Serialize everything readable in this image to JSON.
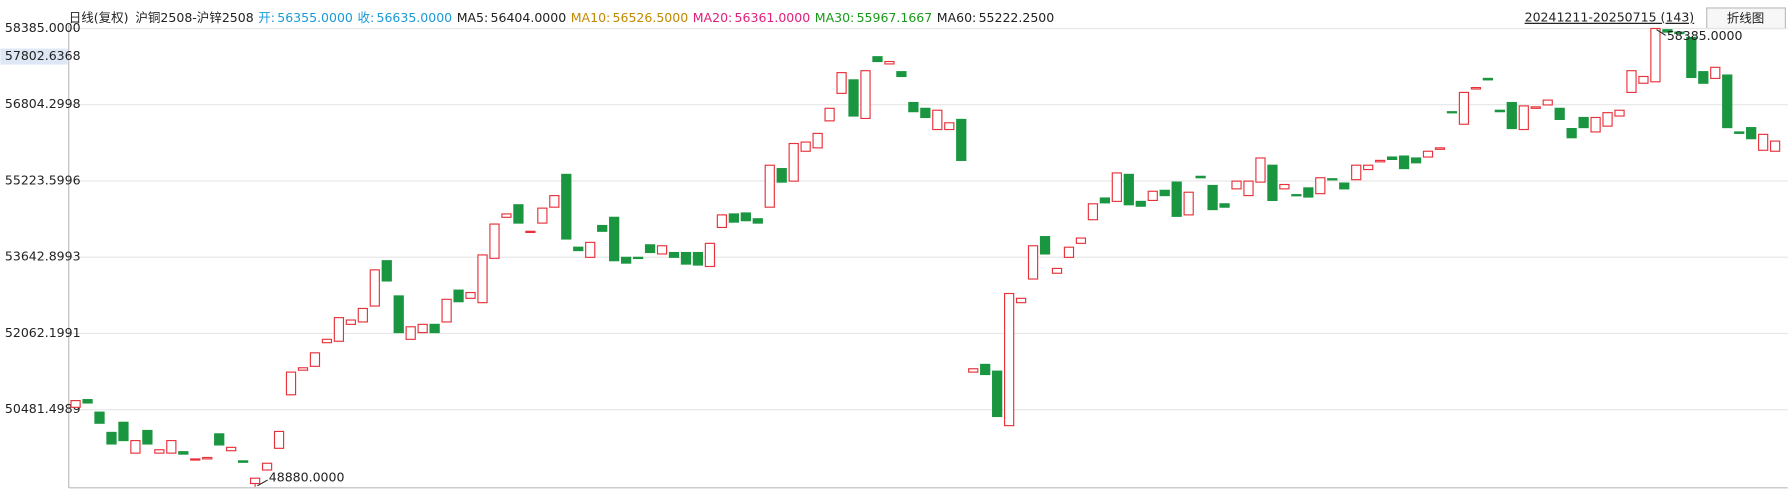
{
  "header": {
    "period": "日线(复权)",
    "symbol": "沪铜2508-沪锌2508",
    "stats": [
      {
        "name": "开:",
        "value": "56355.0000",
        "color": "#1a9ad6"
      },
      {
        "name": "收:",
        "value": "56635.0000",
        "color": "#1a9ad6"
      },
      {
        "name": "MA5:",
        "value": "56404.0000",
        "color": "#222222"
      },
      {
        "name": "MA10:",
        "value": "56526.5000",
        "color": "#c08a00"
      },
      {
        "name": "MA20:",
        "value": "56361.0000",
        "color": "#e0207a"
      },
      {
        "name": "MA30:",
        "value": "55967.1667",
        "color": "#1a9a1a"
      },
      {
        "name": "MA60:",
        "value": "55222.2500",
        "color": "#222222"
      }
    ],
    "range": "20241211-20250715 (143)",
    "button": "折线图"
  },
  "chart_data": {
    "type": "candlestick",
    "up_color": "#e8303a",
    "down_color": "#1a9641",
    "grid": true,
    "ylim": [
      48860,
      58385
    ],
    "yticks": [
      {
        "value": 58385,
        "label": "58385.0000"
      },
      {
        "value": 56804.2998,
        "label": "56804.2998"
      },
      {
        "value": 55223.5996,
        "label": "55223.5996"
      },
      {
        "value": 53642.8993,
        "label": "53642.8993"
      },
      {
        "value": 52062.1991,
        "label": "52062.1991"
      },
      {
        "value": 50481.4989,
        "label": "50481.4989"
      }
    ],
    "last_price": {
      "value": 57802.6368,
      "label": "57802.6368"
    },
    "high_label": "58385.0000",
    "low_label": "48880.0000",
    "ohlc": [
      [
        50530,
        50670,
        50530,
        50670
      ],
      [
        50690,
        50690,
        50620,
        50620
      ],
      [
        50430,
        50430,
        50200,
        50200
      ],
      [
        50010,
        50010,
        49770,
        49770
      ],
      [
        50220,
        50220,
        49840,
        49840
      ],
      [
        49580,
        49840,
        49580,
        49840
      ],
      [
        50050,
        50050,
        49770,
        49770
      ],
      [
        49580,
        49650,
        49580,
        49650
      ],
      [
        49580,
        49840,
        49580,
        49840
      ],
      [
        49610,
        49610,
        49560,
        49560
      ],
      [
        49440,
        49460,
        49440,
        49460
      ],
      [
        49460,
        49490,
        49460,
        49490
      ],
      [
        49980,
        49980,
        49750,
        49750
      ],
      [
        49630,
        49700,
        49630,
        49700
      ],
      [
        49420,
        49420,
        49390,
        49390
      ],
      [
        48950,
        49060,
        48880,
        49060
      ],
      [
        49230,
        49370,
        49230,
        49370
      ],
      [
        49680,
        50030,
        49680,
        50030
      ],
      [
        50790,
        51260,
        50790,
        51260
      ],
      [
        51300,
        51350,
        51300,
        51350
      ],
      [
        51380,
        51660,
        51380,
        51660
      ],
      [
        51870,
        51940,
        51870,
        51940
      ],
      [
        51900,
        52390,
        51900,
        52390
      ],
      [
        52250,
        52340,
        52250,
        52340
      ],
      [
        52300,
        52580,
        52300,
        52580
      ],
      [
        52630,
        53380,
        52630,
        53380
      ],
      [
        53570,
        53570,
        53150,
        53150
      ],
      [
        52840,
        52840,
        52080,
        52080
      ],
      [
        51940,
        52200,
        51940,
        52200
      ],
      [
        52080,
        52250,
        52080,
        52250
      ],
      [
        52250,
        52250,
        52080,
        52080
      ],
      [
        52300,
        52770,
        52300,
        52770
      ],
      [
        52960,
        52960,
        52720,
        52720
      ],
      [
        52790,
        52910,
        52790,
        52910
      ],
      [
        52700,
        53690,
        52700,
        53690
      ],
      [
        53620,
        54330,
        53620,
        54330
      ],
      [
        54470,
        54540,
        54470,
        54540
      ],
      [
        54730,
        54730,
        54350,
        54350
      ],
      [
        54160,
        54180,
        54160,
        54180
      ],
      [
        54350,
        54660,
        54350,
        54660
      ],
      [
        54680,
        54920,
        54680,
        54920
      ],
      [
        55360,
        55360,
        54020,
        54020
      ],
      [
        53850,
        53850,
        53780,
        53780
      ],
      [
        53640,
        53950,
        53640,
        53950
      ],
      [
        54300,
        54300,
        54180,
        54180
      ],
      [
        54470,
        54470,
        53570,
        53570
      ],
      [
        53640,
        53640,
        53520,
        53520
      ],
      [
        53640,
        53640,
        53620,
        53620
      ],
      [
        53900,
        53900,
        53740,
        53740
      ],
      [
        53710,
        53880,
        53710,
        53880
      ],
      [
        53740,
        53740,
        53640,
        53640
      ],
      [
        53740,
        53740,
        53500,
        53500
      ],
      [
        53740,
        53740,
        53480,
        53480
      ],
      [
        53450,
        53930,
        53450,
        53930
      ],
      [
        54260,
        54520,
        54260,
        54520
      ],
      [
        54540,
        54540,
        54370,
        54370
      ],
      [
        54560,
        54560,
        54400,
        54400
      ],
      [
        54440,
        54440,
        54350,
        54350
      ],
      [
        54680,
        55550,
        54680,
        55550
      ],
      [
        55480,
        55480,
        55200,
        55200
      ],
      [
        55220,
        56000,
        55220,
        56000
      ],
      [
        55840,
        56030,
        55840,
        56030
      ],
      [
        55910,
        56210,
        55910,
        56210
      ],
      [
        56470,
        56730,
        56470,
        56730
      ],
      [
        57040,
        57470,
        57040,
        57470
      ],
      [
        57320,
        57320,
        56570,
        56570
      ],
      [
        56520,
        57510,
        56520,
        57510
      ],
      [
        57800,
        57800,
        57700,
        57700
      ],
      [
        57650,
        57700,
        57650,
        57700
      ],
      [
        57490,
        57490,
        57390,
        57390
      ],
      [
        56850,
        56850,
        56660,
        56660
      ],
      [
        56730,
        56730,
        56540,
        56540
      ],
      [
        56290,
        56690,
        56290,
        56690
      ],
      [
        56290,
        56430,
        56290,
        56430
      ],
      [
        56500,
        56500,
        55650,
        55650
      ],
      [
        51260,
        51330,
        51260,
        51330
      ],
      [
        51420,
        51420,
        51210,
        51210
      ],
      [
        51280,
        51280,
        50340,
        50340
      ],
      [
        50150,
        52890,
        50150,
        52890
      ],
      [
        52700,
        52790,
        52700,
        52790
      ],
      [
        53190,
        53880,
        53190,
        53880
      ],
      [
        54070,
        54070,
        53710,
        53710
      ],
      [
        53310,
        53410,
        53310,
        53410
      ],
      [
        53640,
        53850,
        53640,
        53850
      ],
      [
        53930,
        54040,
        53930,
        54040
      ],
      [
        54420,
        54750,
        54420,
        54750
      ],
      [
        54870,
        54870,
        54770,
        54770
      ],
      [
        54800,
        55390,
        54800,
        55390
      ],
      [
        55360,
        55360,
        54730,
        54730
      ],
      [
        54800,
        54800,
        54700,
        54700
      ],
      [
        54820,
        55010,
        54820,
        55010
      ],
      [
        55030,
        55030,
        54920,
        54920
      ],
      [
        55200,
        55200,
        54490,
        54490
      ],
      [
        54520,
        54990,
        54520,
        54990
      ],
      [
        55320,
        55320,
        55290,
        55290
      ],
      [
        55130,
        55130,
        54630,
        54630
      ],
      [
        54750,
        54750,
        54680,
        54680
      ],
      [
        55060,
        55220,
        55060,
        55220
      ],
      [
        54920,
        55220,
        54920,
        55220
      ],
      [
        55200,
        55700,
        55200,
        55700
      ],
      [
        55550,
        55550,
        54820,
        54820
      ],
      [
        55060,
        55150,
        55060,
        55150
      ],
      [
        54940,
        54940,
        54920,
        54920
      ],
      [
        55080,
        55080,
        54890,
        54890
      ],
      [
        54960,
        55290,
        54960,
        55290
      ],
      [
        55270,
        55270,
        55250,
        55250
      ],
      [
        55180,
        55180,
        55060,
        55060
      ],
      [
        55250,
        55550,
        55250,
        55550
      ],
      [
        55460,
        55550,
        55460,
        55550
      ],
      [
        55620,
        55650,
        55620,
        55650
      ],
      [
        55720,
        55720,
        55670,
        55670
      ],
      [
        55740,
        55740,
        55480,
        55480
      ],
      [
        55700,
        55700,
        55600,
        55600
      ],
      [
        55720,
        55840,
        55720,
        55840
      ],
      [
        55880,
        55910,
        55880,
        55910
      ],
      [
        56660,
        56660,
        56640,
        56640
      ],
      [
        56400,
        57060,
        56400,
        57060
      ],
      [
        57130,
        57160,
        57130,
        57160
      ],
      [
        57350,
        57350,
        57320,
        57320
      ],
      [
        56690,
        56690,
        56660,
        56660
      ],
      [
        56850,
        56850,
        56310,
        56310
      ],
      [
        56290,
        56780,
        56290,
        56780
      ],
      [
        56730,
        56760,
        56730,
        56760
      ],
      [
        56800,
        56900,
        56800,
        56900
      ],
      [
        56730,
        56730,
        56500,
        56500
      ],
      [
        56310,
        56310,
        56120,
        56120
      ],
      [
        56540,
        56540,
        56330,
        56330
      ],
      [
        56240,
        56540,
        56240,
        56540
      ],
      [
        56360,
        56640,
        56360,
        56640
      ],
      [
        56570,
        56690,
        56570,
        56690
      ],
      [
        57060,
        57510,
        57060,
        57510
      ],
      [
        57250,
        57390,
        57250,
        57390
      ],
      [
        57280,
        58385,
        57280,
        58385
      ],
      [
        58360,
        58360,
        58310,
        58310
      ],
      [
        58310,
        58310,
        58280,
        58280
      ],
      [
        58200,
        58200,
        57370,
        57370
      ],
      [
        57490,
        57490,
        57250,
        57250
      ],
      [
        57350,
        57580,
        57350,
        57580
      ],
      [
        57420,
        57420,
        56330,
        56330
      ],
      [
        56240,
        56240,
        56210,
        56210
      ],
      [
        56330,
        56330,
        56100,
        56100
      ],
      [
        55860,
        56190,
        55860,
        56190
      ],
      [
        55840,
        56050,
        55840,
        56050
      ]
    ]
  }
}
